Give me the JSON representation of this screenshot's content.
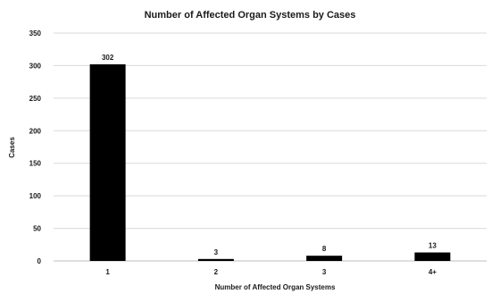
{
  "chart_data": {
    "type": "bar",
    "title": "Number of Affected Organ Systems by Cases",
    "xlabel": "Number of Affected Organ Systems",
    "ylabel": "Cases",
    "categories": [
      "1",
      "2",
      "3",
      "4+"
    ],
    "values": [
      302,
      3,
      8,
      13
    ],
    "data_labels": [
      "302",
      "3",
      "8",
      "13"
    ],
    "ylim": [
      0,
      350
    ],
    "yticks": [
      0,
      50,
      100,
      150,
      200,
      250,
      300,
      350
    ],
    "grid": true,
    "bar_color": "#000000",
    "legend": "none"
  }
}
